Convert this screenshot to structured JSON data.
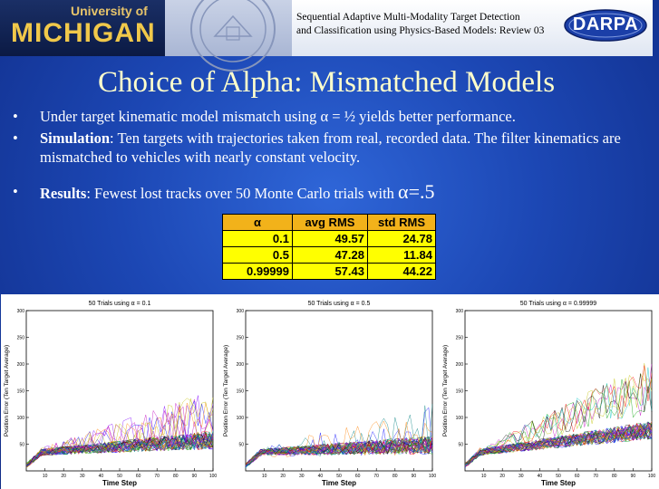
{
  "header": {
    "logo_top": "University of",
    "logo_bottom": "MICHIGAN",
    "title_line1": "Sequential Adaptive Multi-Modality Target Detection",
    "title_line2": "and Classification using Physics-Based Models: Review 03",
    "agency": "DARPA"
  },
  "slide": {
    "title": "Choice of Alpha: Mismatched Models",
    "bullet_glyph": "•",
    "b1": "Under target kinematic model mismatch using α = ½ yields better performance.",
    "b2_label": "Simulation",
    "b2_text": ": Ten targets with trajectories taken from real, recorded data. The filter kinematics are mismatched to vehicles with nearly constant velocity.",
    "b3_label": "Results",
    "b3_text": ": Fewest lost tracks over 50 Monte Carlo trials with",
    "b3_alpha": "α=.5"
  },
  "table": {
    "headers": [
      "α",
      "avg RMS",
      "std RMS"
    ],
    "rows": [
      [
        "0.1",
        "49.57",
        "24.78"
      ],
      [
        "0.5",
        "47.28",
        "11.84"
      ],
      [
        "0.99999",
        "57.43",
        "44.22"
      ]
    ]
  },
  "chart_data": [
    {
      "type": "line",
      "title": "50 Trials using α = 0.1",
      "xlabel": "Time Step",
      "ylabel": "Position Error (Ten Target Average)",
      "xlim": [
        0,
        100
      ],
      "ylim": [
        0,
        300
      ],
      "xticks": [
        "10",
        "20",
        "30",
        "40",
        "50",
        "60",
        "70",
        "80",
        "90",
        "100"
      ],
      "yticks": [
        "50",
        "100",
        "150",
        "200",
        "250",
        "300"
      ],
      "series_count": 50
    },
    {
      "type": "line",
      "title": "50 Trials using α = 0.5",
      "xlabel": "Time Step",
      "ylabel": "Position Error (Ten Target Average)",
      "xlim": [
        0,
        100
      ],
      "ylim": [
        0,
        300
      ],
      "xticks": [
        "10",
        "20",
        "30",
        "40",
        "50",
        "60",
        "70",
        "80",
        "90",
        "100"
      ],
      "yticks": [
        "50",
        "100",
        "150",
        "200",
        "250",
        "300"
      ],
      "series_count": 50
    },
    {
      "type": "line",
      "title": "50 Trials using α = 0.99999",
      "xlabel": "Time Step",
      "ylabel": "Position Error (Ten Target Average)",
      "xlim": [
        0,
        100
      ],
      "ylim": [
        0,
        300
      ],
      "xticks": [
        "10",
        "20",
        "30",
        "40",
        "50",
        "60",
        "70",
        "80",
        "90",
        "100"
      ],
      "yticks": [
        "50",
        "100",
        "150",
        "200",
        "250",
        "300"
      ],
      "series_count": 50
    }
  ]
}
